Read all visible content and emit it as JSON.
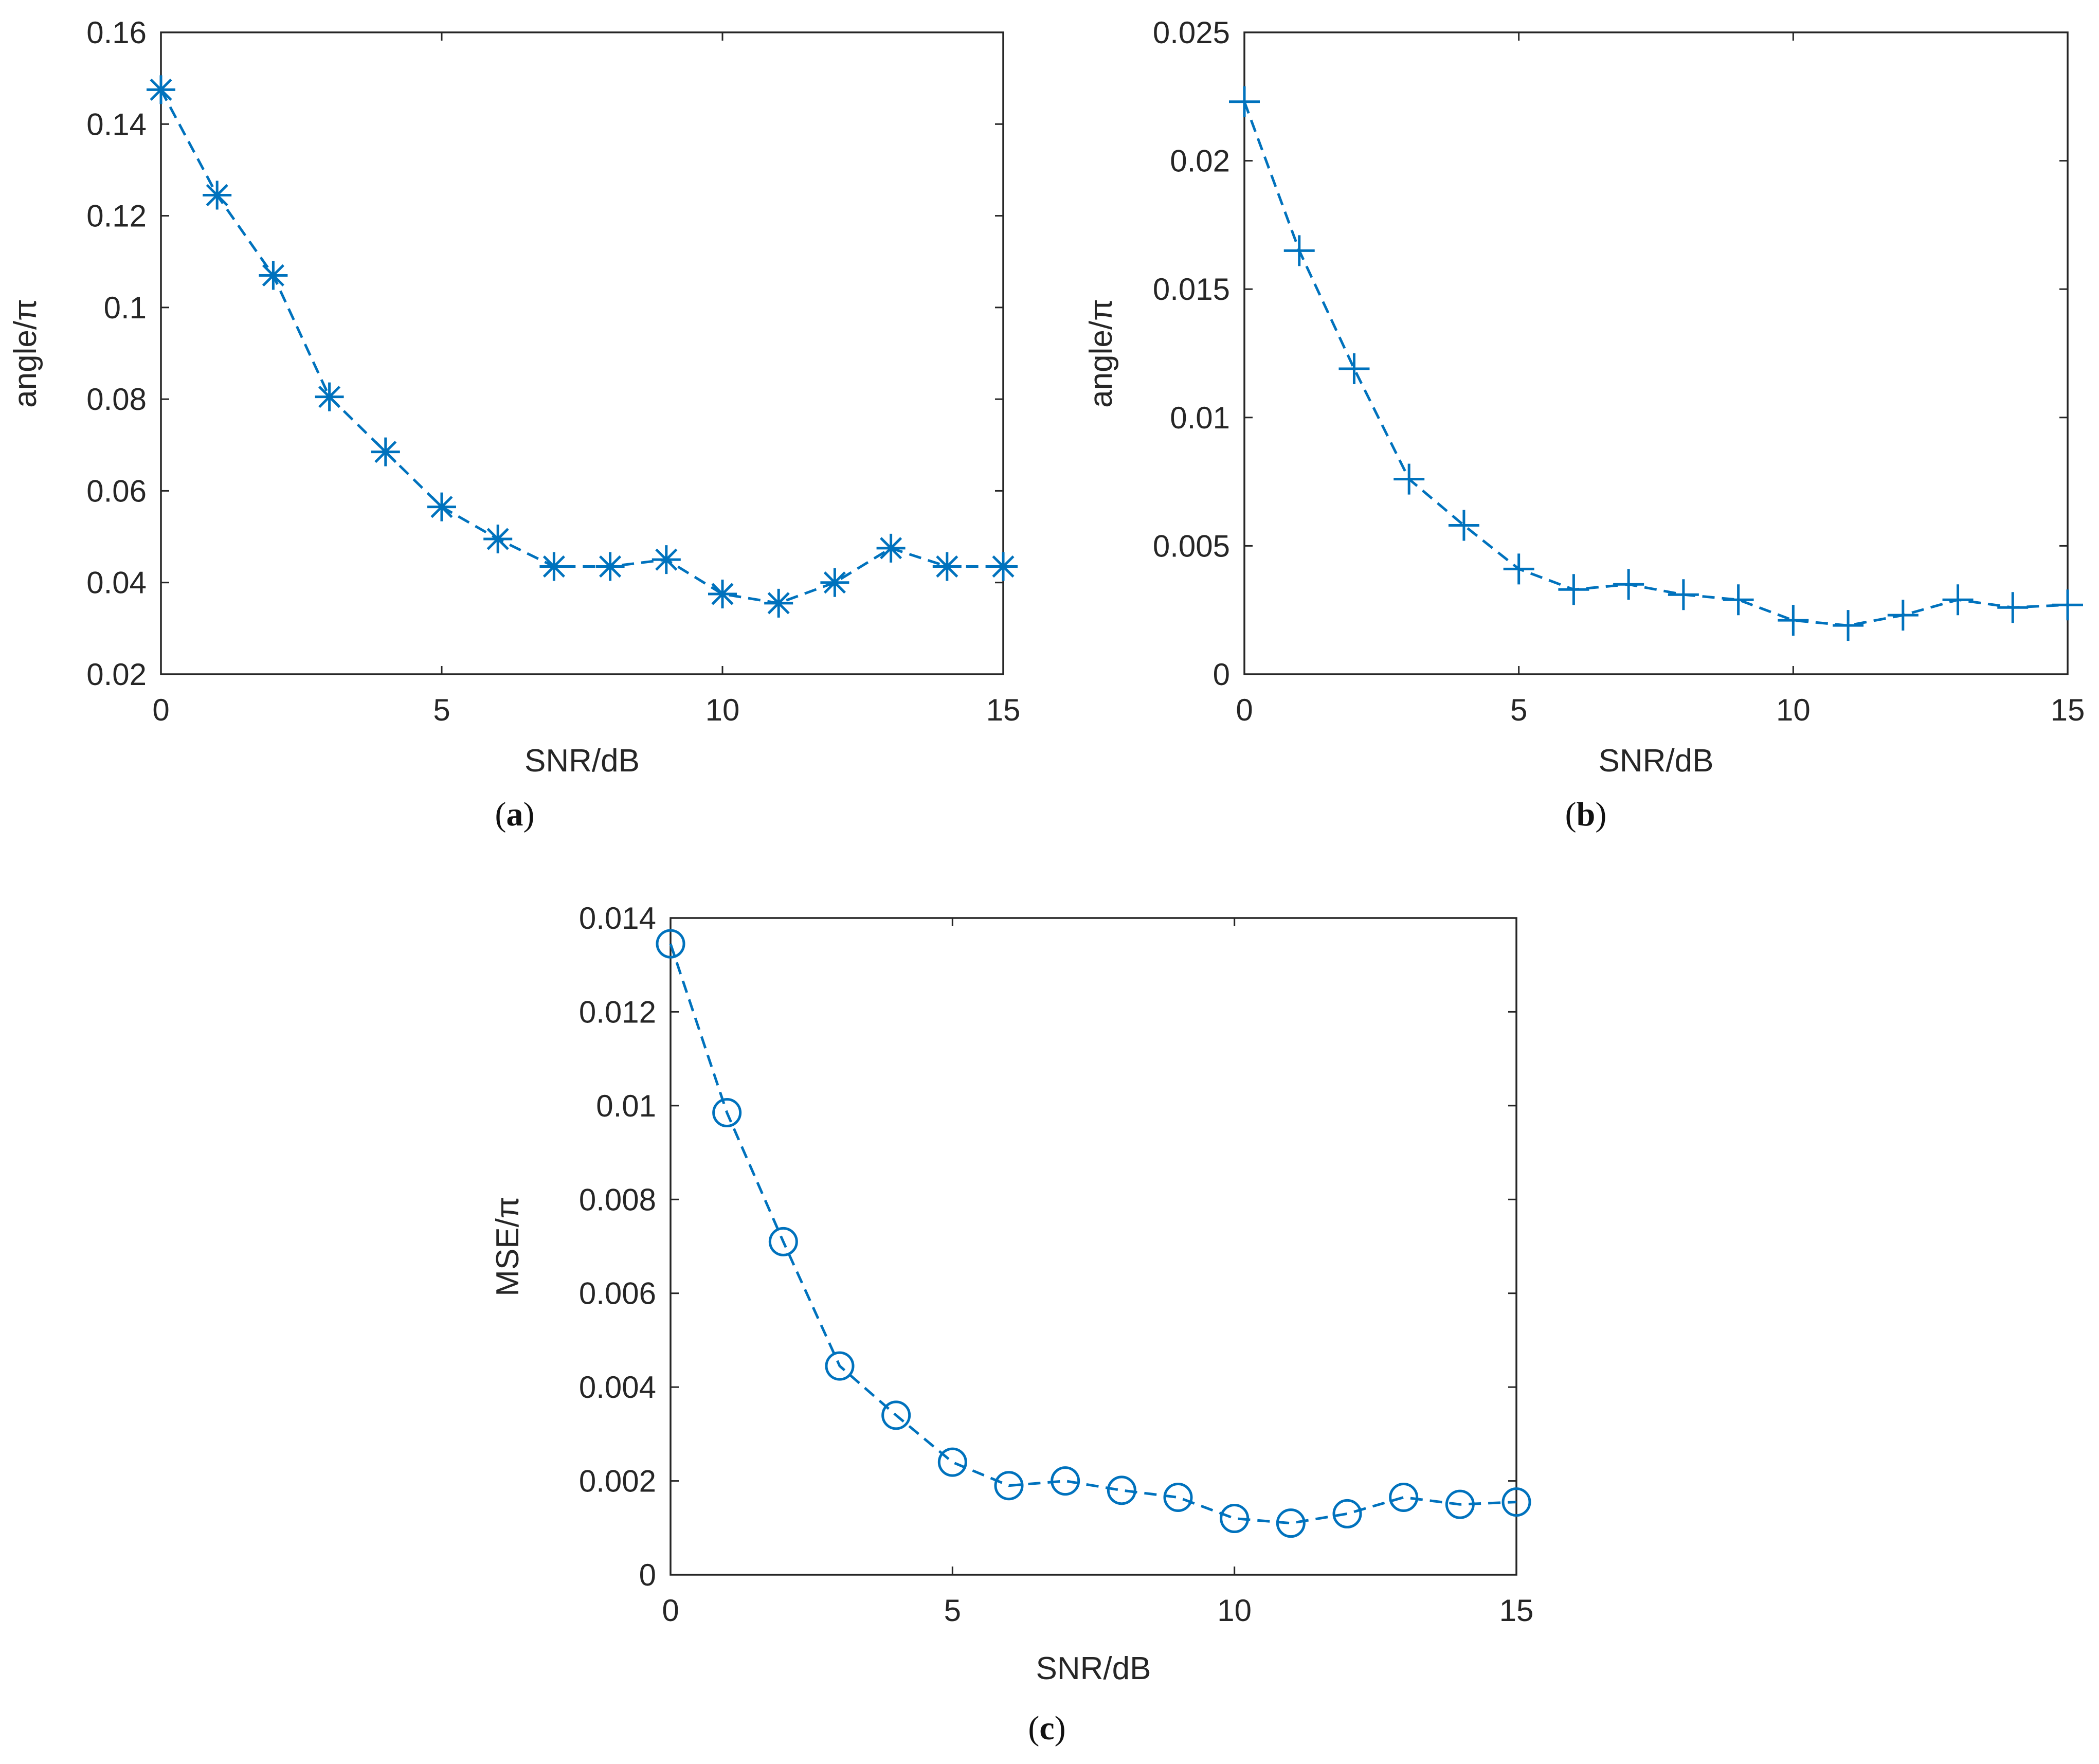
{
  "series_color": "#0072BD",
  "chart_data": [
    {
      "type": "line",
      "panel": "a",
      "caption": "(a)",
      "xlabel": "SNR/dB",
      "ylabel": "angle/π",
      "xlim": [
        0,
        15
      ],
      "ylim": [
        0.02,
        0.16
      ],
      "xticks": [
        0,
        5,
        10,
        15
      ],
      "xtick_labels": [
        "0",
        "5",
        "10",
        "15"
      ],
      "yticks": [
        0.02,
        0.04,
        0.06,
        0.08,
        0.1,
        0.12,
        0.14,
        0.16
      ],
      "ytick_labels": [
        "0.02",
        "0.04",
        "0.06",
        "0.08",
        "0.1",
        "0.12",
        "0.14",
        "0.16"
      ],
      "marker": "asterisk",
      "line_style": "dashed",
      "x": [
        0,
        1,
        2,
        3,
        4,
        5,
        6,
        7,
        8,
        9,
        10,
        11,
        12,
        13,
        14,
        15
      ],
      "y": [
        0.1475,
        0.1245,
        0.107,
        0.0805,
        0.0685,
        0.0565,
        0.0495,
        0.0435,
        0.0435,
        0.045,
        0.0375,
        0.0355,
        0.04,
        0.0475,
        0.0435,
        0.0435
      ]
    },
    {
      "type": "line",
      "panel": "b",
      "caption": "(b)",
      "xlabel": "SNR/dB",
      "ylabel": "angle/π",
      "xlim": [
        0,
        15
      ],
      "ylim": [
        0,
        0.025
      ],
      "xticks": [
        0,
        5,
        10,
        15
      ],
      "xtick_labels": [
        "0",
        "5",
        "10",
        "15"
      ],
      "yticks": [
        0,
        0.005,
        0.01,
        0.015,
        0.02,
        0.025
      ],
      "ytick_labels": [
        "0",
        "0.005",
        "0.01",
        "0.015",
        "0.02",
        "0.025"
      ],
      "marker": "plus",
      "line_style": "dashed",
      "x": [
        0,
        1,
        2,
        3,
        4,
        5,
        6,
        7,
        8,
        9,
        10,
        11,
        12,
        13,
        14,
        15
      ],
      "y": [
        0.0223,
        0.0165,
        0.0119,
        0.0076,
        0.0058,
        0.0041,
        0.0033,
        0.0035,
        0.0031,
        0.0029,
        0.0021,
        0.0019,
        0.0023,
        0.0029,
        0.0026,
        0.0027
      ]
    },
    {
      "type": "line",
      "panel": "c",
      "caption": "(c)",
      "xlabel": "SNR/dB",
      "ylabel": "MSE/π",
      "xlim": [
        0,
        15
      ],
      "ylim": [
        0,
        0.014
      ],
      "xticks": [
        0,
        5,
        10,
        15
      ],
      "xtick_labels": [
        "0",
        "5",
        "10",
        "15"
      ],
      "yticks": [
        0,
        0.002,
        0.004,
        0.006,
        0.008,
        0.01,
        0.012,
        0.014
      ],
      "ytick_labels": [
        "0",
        "0.002",
        "0.004",
        "0.006",
        "0.008",
        "0.01",
        "0.012",
        "0.014"
      ],
      "marker": "circle",
      "line_style": "dashed",
      "x": [
        0,
        1,
        2,
        3,
        4,
        5,
        6,
        7,
        8,
        9,
        10,
        11,
        12,
        13,
        14,
        15
      ],
      "y": [
        0.01345,
        0.00985,
        0.0071,
        0.00445,
        0.0034,
        0.0024,
        0.0019,
        0.002,
        0.0018,
        0.00165,
        0.0012,
        0.0011,
        0.0013,
        0.00165,
        0.0015,
        0.00155
      ]
    }
  ]
}
